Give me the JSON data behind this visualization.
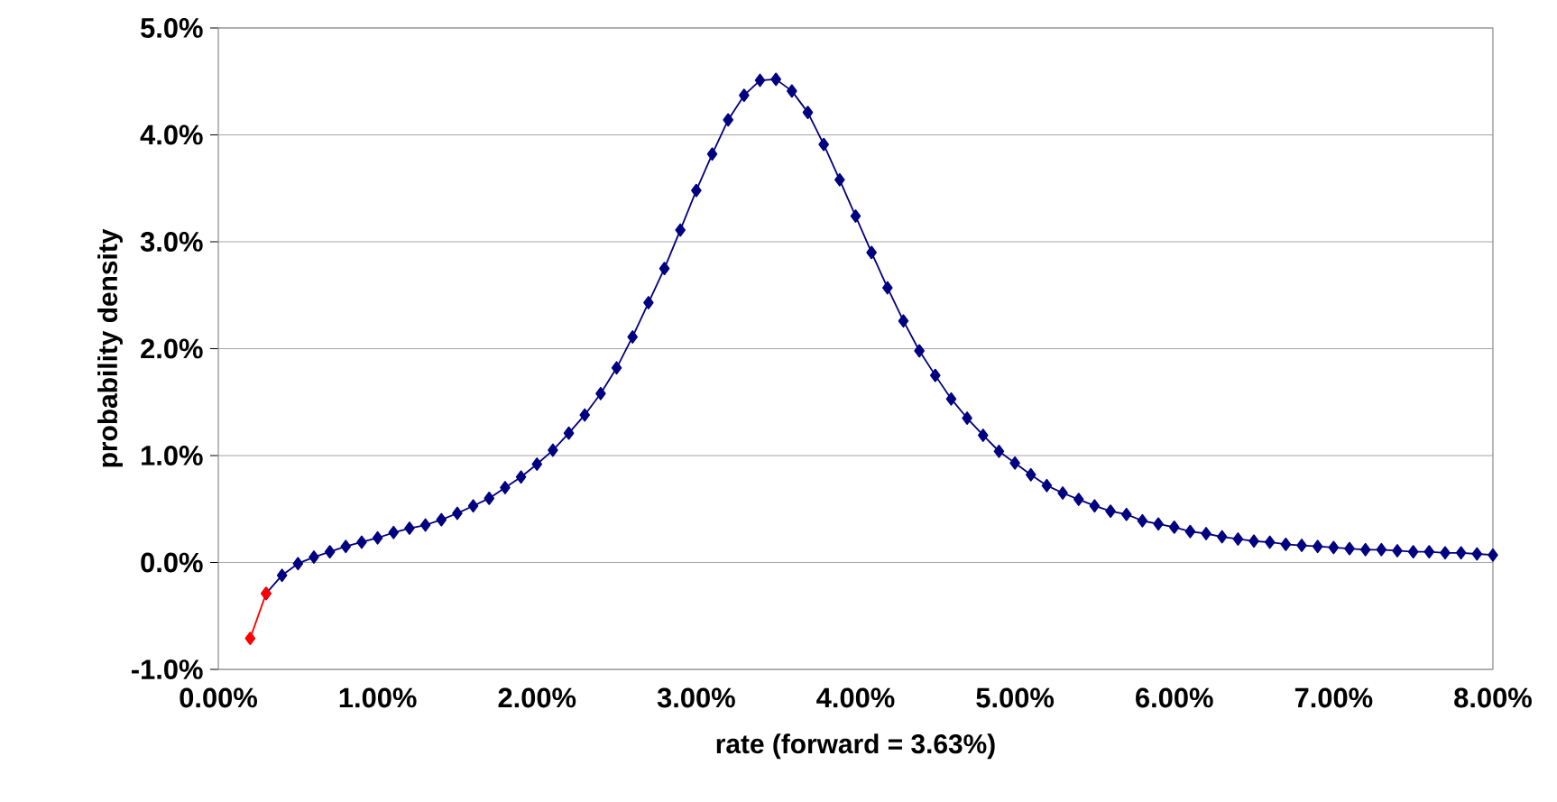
{
  "chart_data": {
    "type": "line",
    "xlabel": "rate (forward = 3.63%)",
    "ylabel": "probability density",
    "xlim": [
      0,
      8
    ],
    "ylim": [
      -1,
      5
    ],
    "xticks": [
      {
        "value": 0,
        "label": "0.00%"
      },
      {
        "value": 1,
        "label": "1.00%"
      },
      {
        "value": 2,
        "label": "2.00%"
      },
      {
        "value": 3,
        "label": "3.00%"
      },
      {
        "value": 4,
        "label": "4.00%"
      },
      {
        "value": 5,
        "label": "5.00%"
      },
      {
        "value": 6,
        "label": "6.00%"
      },
      {
        "value": 7,
        "label": "7.00%"
      },
      {
        "value": 8,
        "label": "8.00%"
      }
    ],
    "yticks": [
      {
        "value": -1,
        "label": "-1.0%"
      },
      {
        "value": 0,
        "label": "0.0%"
      },
      {
        "value": 1,
        "label": "1.0%"
      },
      {
        "value": 2,
        "label": "2.0%"
      },
      {
        "value": 3,
        "label": "3.0%"
      },
      {
        "value": 4,
        "label": "4.0%"
      },
      {
        "value": 5,
        "label": "5.0%"
      }
    ],
    "grid": "y",
    "marker": "diamond",
    "line_style": "solid",
    "series": [
      {
        "color": "#000080",
        "x": [
          0.3,
          0.4,
          0.5,
          0.6,
          0.7,
          0.8,
          0.9,
          1.0,
          1.1,
          1.2,
          1.3,
          1.4,
          1.5,
          1.6,
          1.7,
          1.8,
          1.9,
          2.0,
          2.1,
          2.2,
          2.3,
          2.4,
          2.5,
          2.6,
          2.7,
          2.8,
          2.9,
          3.0,
          3.1,
          3.2,
          3.3,
          3.4,
          3.5,
          3.6,
          3.7,
          3.8,
          3.9,
          4.0,
          4.1,
          4.2,
          4.3,
          4.4,
          4.5,
          4.6,
          4.7,
          4.8,
          4.9,
          5.0,
          5.1,
          5.2,
          5.3,
          5.4,
          5.5,
          5.6,
          5.7,
          5.8,
          5.9,
          6.0,
          6.1,
          6.2,
          6.3,
          6.4,
          6.5,
          6.6,
          6.7,
          6.8,
          6.9,
          7.0,
          7.1,
          7.2,
          7.3,
          7.4,
          7.5,
          7.6,
          7.7,
          7.8,
          7.9,
          8.0
        ],
        "values": [
          -0.29,
          -0.12,
          -0.01,
          0.05,
          0.1,
          0.15,
          0.19,
          0.23,
          0.28,
          0.32,
          0.35,
          0.4,
          0.46,
          0.53,
          0.6,
          0.7,
          0.8,
          0.92,
          1.05,
          1.21,
          1.38,
          1.58,
          1.82,
          2.11,
          2.43,
          2.75,
          3.11,
          3.48,
          3.82,
          4.14,
          4.37,
          4.51,
          4.52,
          4.41,
          4.21,
          3.91,
          3.58,
          3.24,
          2.9,
          2.57,
          2.26,
          1.98,
          1.75,
          1.53,
          1.35,
          1.19,
          1.04,
          0.93,
          0.82,
          0.72,
          0.65,
          0.59,
          0.53,
          0.48,
          0.45,
          0.39,
          0.36,
          0.33,
          0.29,
          0.27,
          0.24,
          0.22,
          0.2,
          0.19,
          0.17,
          0.16,
          0.15,
          0.14,
          0.13,
          0.12,
          0.12,
          0.11,
          0.1,
          0.1,
          0.09,
          0.09,
          0.08,
          0.07
        ]
      },
      {
        "color": "#ff0000",
        "x": [
          0.2,
          0.3
        ],
        "values": [
          -0.71,
          -0.29
        ]
      }
    ]
  }
}
